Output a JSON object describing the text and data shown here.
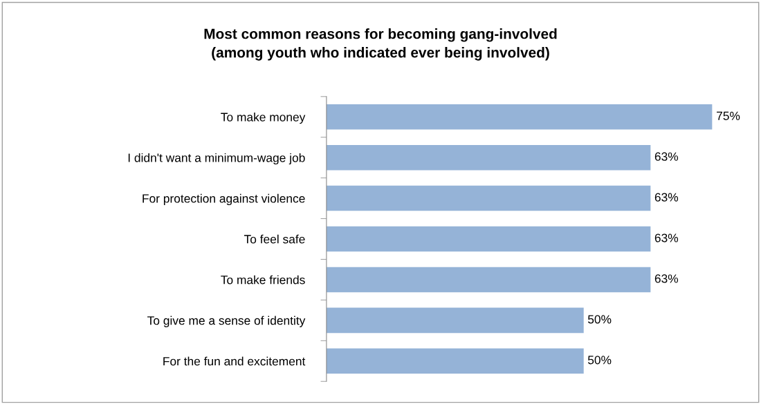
{
  "chart_data": {
    "type": "bar",
    "orientation": "horizontal",
    "title": "Most common reasons for becoming gang-involved\n(among youth who indicated ever being involved)",
    "categories": [
      "To make money",
      "I didn't want a minimum-wage job",
      "For protection against violence",
      "To feel safe",
      "To make friends",
      "To give me a sense of identity",
      "For the fun and excitement"
    ],
    "values": [
      75,
      63,
      63,
      63,
      63,
      50,
      50
    ],
    "value_labels": [
      "75%",
      "63%",
      "63%",
      "63%",
      "63%",
      "50%",
      "50%"
    ],
    "color": "#95b3d7",
    "grid": false,
    "legend": false
  }
}
